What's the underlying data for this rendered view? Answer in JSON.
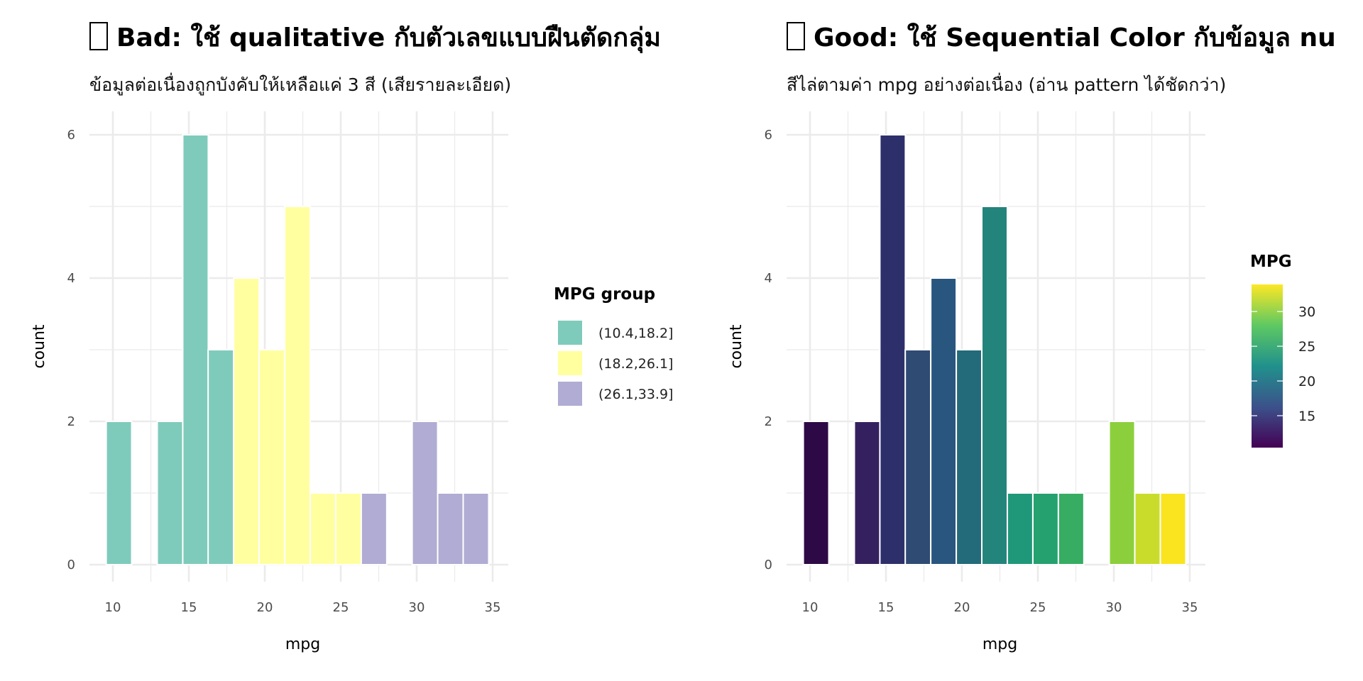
{
  "chart_data": [
    {
      "type": "bar",
      "title": "Bad: ใช้ qualitative กับตัวเลขแบบฝืนตัดกลุ่ม",
      "subtitle": "ข้อมูลต่อเนื่องถูกบังคับให้เหลือแค่ 3 สี (เสียรายละเอียด)",
      "xlabel": "mpg",
      "ylabel": "count",
      "xlim": [
        8.5,
        36
      ],
      "ylim": [
        -0.3,
        6.6
      ],
      "xticks": [
        10,
        15,
        20,
        25,
        30,
        35
      ],
      "yticks": [
        0,
        2,
        4,
        6
      ],
      "bin_centers": [
        10.4,
        12.08,
        13.76,
        15.44,
        17.11,
        18.79,
        20.47,
        22.15,
        23.83,
        25.51,
        27.19,
        28.86,
        30.54,
        32.22,
        33.9
      ],
      "counts": [
        2,
        0,
        2,
        6,
        3,
        4,
        3,
        5,
        1,
        1,
        1,
        0,
        2,
        1,
        1
      ],
      "groups": [
        0,
        0,
        0,
        0,
        0,
        1,
        1,
        1,
        1,
        1,
        2,
        2,
        2,
        2,
        2
      ],
      "legend": {
        "title": "MPG group",
        "placement": "right",
        "items": [
          {
            "label": "(10.4,18.2]",
            "color": "#7fcbbb"
          },
          {
            "label": "(18.2,26.1]",
            "color": "#ffffa0"
          },
          {
            "label": "(26.1,33.9]",
            "color": "#b0acd3"
          }
        ]
      }
    },
    {
      "type": "bar",
      "title": "Good: ใช้ Sequential Color กับข้อมูล nu",
      "subtitle": "สีไล่ตามค่า mpg อย่างต่อเนื่อง (อ่าน pattern ได้ชัดกว่า)",
      "xlabel": "mpg",
      "ylabel": "count",
      "xlim": [
        8.5,
        36
      ],
      "ylim": [
        -0.3,
        6.6
      ],
      "xticks": [
        10,
        15,
        20,
        25,
        30,
        35
      ],
      "yticks": [
        0,
        2,
        4,
        6
      ],
      "bin_centers": [
        10.4,
        12.08,
        13.76,
        15.44,
        17.11,
        18.79,
        20.47,
        22.15,
        23.83,
        25.51,
        27.19,
        28.86,
        30.54,
        32.22,
        33.9
      ],
      "counts": [
        2,
        0,
        2,
        6,
        3,
        4,
        3,
        5,
        1,
        1,
        1,
        0,
        2,
        1,
        1
      ],
      "colors": [
        "#2d0a45",
        "#37135e",
        "#35205f",
        "#2d2f6b",
        "#2f4a73",
        "#29567f",
        "#236a7a",
        "#23847b",
        "#1f9879",
        "#25a06f",
        "#36ad63",
        "#55b950",
        "#8ccf3c",
        "#c9dc2c",
        "#f9e41f"
      ],
      "legend": {
        "title": "MPG",
        "placement": "right",
        "type": "colorbar",
        "range": [
          10.4,
          33.9
        ],
        "ticks": [
          15,
          20,
          25,
          30
        ],
        "stops": [
          "#440154",
          "#3b528b",
          "#21918c",
          "#5ec962",
          "#fde725"
        ]
      }
    }
  ]
}
